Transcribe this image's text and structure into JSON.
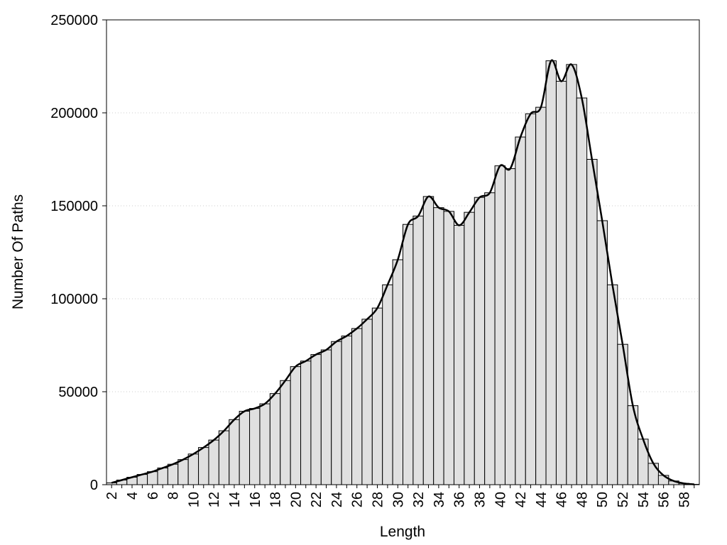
{
  "chart_data": {
    "type": "bar",
    "title": "",
    "xlabel": "Length",
    "ylabel": "Number Of Paths",
    "ylim": [
      0,
      250000
    ],
    "yticks": [
      "0",
      "50000",
      "100000",
      "150000",
      "200000",
      "250000"
    ],
    "xtick_labels": [
      "2",
      "4",
      "6",
      "8",
      "10",
      "12",
      "14",
      "16",
      "18",
      "20",
      "22",
      "24",
      "26",
      "28",
      "30",
      "32",
      "34",
      "36",
      "38",
      "40",
      "42",
      "44",
      "46",
      "48",
      "50",
      "52",
      "54",
      "56",
      "58"
    ],
    "grid": "horizontal dotted",
    "legend": "none",
    "colors": {
      "bar_fill": "#e0e0e0",
      "bar_stroke": "#000000",
      "line": "#000000",
      "grid": "#cccccc"
    },
    "categories": [
      2,
      3,
      4,
      5,
      6,
      7,
      8,
      9,
      10,
      11,
      12,
      13,
      14,
      15,
      16,
      17,
      18,
      19,
      20,
      21,
      22,
      23,
      24,
      25,
      26,
      27,
      28,
      29,
      30,
      31,
      32,
      33,
      34,
      35,
      36,
      37,
      38,
      39,
      40,
      41,
      42,
      43,
      44,
      45,
      46,
      47,
      48,
      49,
      50,
      51,
      52,
      53,
      54,
      55,
      56,
      57,
      58,
      59
    ],
    "values": [
      1000,
      2500,
      4000,
      5500,
      7000,
      9000,
      11000,
      13500,
      16500,
      20000,
      24000,
      29000,
      35000,
      39500,
      41000,
      43500,
      49000,
      56000,
      63500,
      66500,
      70000,
      72500,
      77000,
      80000,
      84000,
      89000,
      95000,
      107500,
      121000,
      140000,
      144500,
      155000,
      149000,
      147000,
      139500,
      146500,
      154500,
      157000,
      171500,
      170000,
      187000,
      199500,
      203000,
      228000,
      217000,
      226000,
      208000,
      175000,
      142000,
      107500,
      75500,
      42500,
      24500,
      11500,
      5000,
      2000,
      700,
      200
    ],
    "series": [
      {
        "type": "line",
        "smooth": true,
        "values": [
          1000,
          2500,
          4000,
          5500,
          7000,
          9000,
          11000,
          13500,
          16500,
          20000,
          24000,
          29000,
          35000,
          39500,
          41000,
          43500,
          49000,
          56000,
          63500,
          66500,
          70000,
          72500,
          77000,
          80000,
          84000,
          89000,
          95000,
          107500,
          121000,
          140000,
          144500,
          155000,
          149000,
          147000,
          139500,
          146500,
          154500,
          157000,
          171500,
          170000,
          187000,
          199500,
          203000,
          228000,
          217000,
          226000,
          208000,
          175000,
          142000,
          107500,
          75500,
          42500,
          24500,
          11500,
          5000,
          2000,
          700,
          200
        ]
      }
    ]
  }
}
